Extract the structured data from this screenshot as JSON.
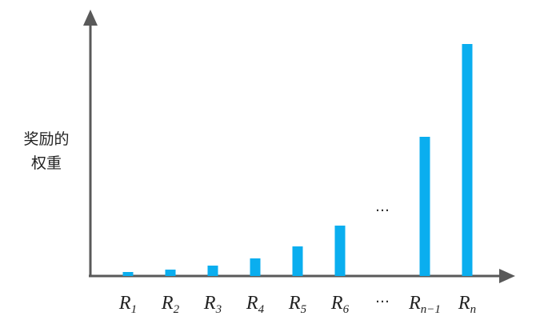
{
  "chart_data": {
    "type": "bar",
    "y_label_lines": [
      "奖励的",
      "权重"
    ],
    "categories": [
      "R1",
      "R2",
      "R3",
      "R4",
      "R5",
      "R6",
      "…",
      "Rn−1",
      "Rn"
    ],
    "values": [
      5,
      8,
      13,
      22,
      37,
      63,
      null,
      174,
      290
    ],
    "annotation": "…",
    "color": "#0aaeef",
    "ylim": [
      0,
      330
    ]
  }
}
